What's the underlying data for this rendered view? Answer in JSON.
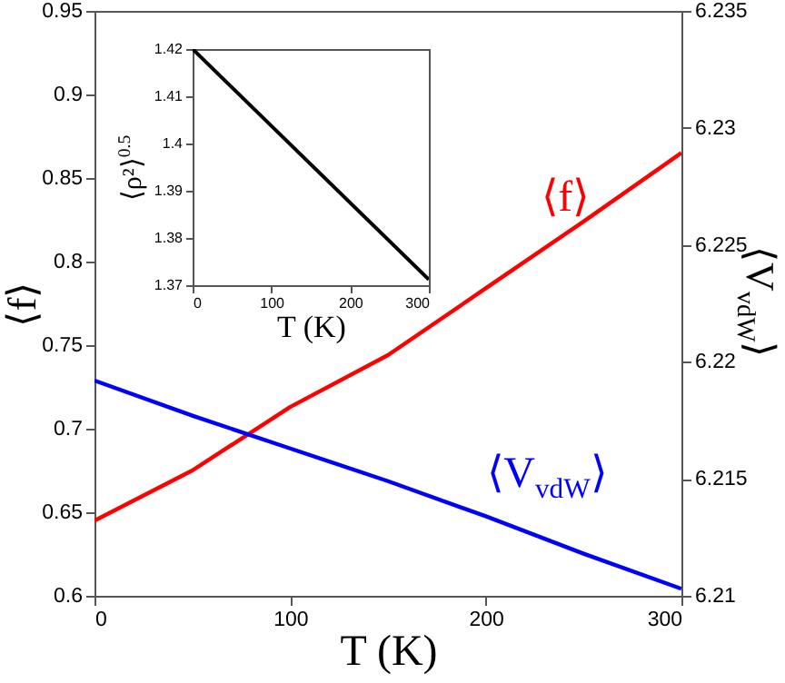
{
  "chart_data": [
    {
      "type": "line",
      "xlabel": "T (K)",
      "ylabel": "⟨f⟩",
      "y2label": "⟨V$_{vdW}$⟩",
      "x": [
        0,
        50,
        100,
        150,
        200,
        250,
        300
      ],
      "xlim": [
        0,
        300
      ],
      "xticks": [
        0,
        100,
        200,
        300
      ],
      "ylim": [
        0.6,
        0.95
      ],
      "yticks": [
        0.6,
        0.65,
        0.7,
        0.75,
        0.8,
        0.85,
        0.9,
        0.95
      ],
      "y2lim": [
        6.21,
        6.235
      ],
      "y2ticks": [
        6.21,
        6.215,
        6.22,
        6.225,
        6.23,
        6.235
      ],
      "series": [
        {
          "name": "⟨f⟩",
          "color": "#ff0000",
          "values": [
            0.645,
            0.675,
            0.713,
            0.744,
            0.784,
            0.824,
            0.865
          ]
        },
        {
          "name": "⟨V$_{vdW}$⟩",
          "color": "#0000ff",
          "axis": "y2",
          "values": [
            6.2192,
            6.2177,
            6.2163,
            6.2149,
            6.2134,
            6.2118,
            6.2103
          ]
        }
      ]
    },
    {
      "type": "line",
      "xlabel": "T (K)",
      "ylabel": "⟨ρ²⟩$^{0.5}$",
      "x": [
        0,
        300
      ],
      "xlim": [
        0,
        300
      ],
      "xticks": [
        0,
        100,
        200,
        300
      ],
      "ylim": [
        1.37,
        1.42
      ],
      "yticks": [
        1.37,
        1.38,
        1.39,
        1.4,
        1.41,
        1.42
      ],
      "series": [
        {
          "color": "#000000",
          "values": [
            1.42,
            1.3712
          ]
        }
      ]
    }
  ]
}
